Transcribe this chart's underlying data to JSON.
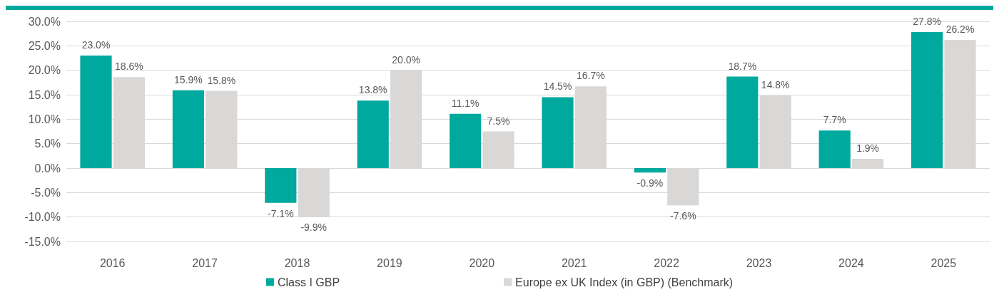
{
  "chart_data": {
    "type": "bar",
    "categories": [
      "2016",
      "2017",
      "2018",
      "2019",
      "2020",
      "2021",
      "2022",
      "2023",
      "2024",
      "2025"
    ],
    "series": [
      {
        "name": "Class I GBP",
        "color": "#00a99d",
        "values": [
          23.0,
          15.9,
          -7.1,
          13.8,
          11.1,
          14.5,
          -0.9,
          18.7,
          7.7,
          27.8
        ],
        "value_labels": [
          "23.0%",
          "15.9%",
          "-7.1%",
          "13.8%",
          "11.1%",
          "14.5%",
          "-0.9%",
          "18.7%",
          "7.7%",
          "27.8%"
        ]
      },
      {
        "name": "Europe ex UK Index (in GBP) (Benchmark)",
        "color": "#d9d8d6",
        "values": [
          18.6,
          15.8,
          -9.9,
          20.0,
          7.5,
          16.7,
          -7.6,
          14.8,
          1.9,
          26.2
        ],
        "value_labels": [
          "18.6%",
          "15.8%",
          "-9.9%",
          "20.0%",
          "7.5%",
          "16.7%",
          "-7.6%",
          "14.8%",
          "1.9%",
          "26.2%"
        ]
      }
    ],
    "ylim": [
      -15,
      30
    ],
    "yticks": [
      {
        "value": -15,
        "label": "-15.0%"
      },
      {
        "value": -10,
        "label": "-10.0%"
      },
      {
        "value": -5,
        "label": "-5.0%"
      },
      {
        "value": 0,
        "label": "0.0%"
      },
      {
        "value": 5,
        "label": "5.0%"
      },
      {
        "value": 10,
        "label": "10.0%"
      },
      {
        "value": 15,
        "label": "15.0%"
      },
      {
        "value": 20,
        "label": "20.0%"
      },
      {
        "value": 25,
        "label": "25.0%"
      },
      {
        "value": 30,
        "label": "30.0%"
      }
    ],
    "grid": "y",
    "legend": "bottom"
  }
}
